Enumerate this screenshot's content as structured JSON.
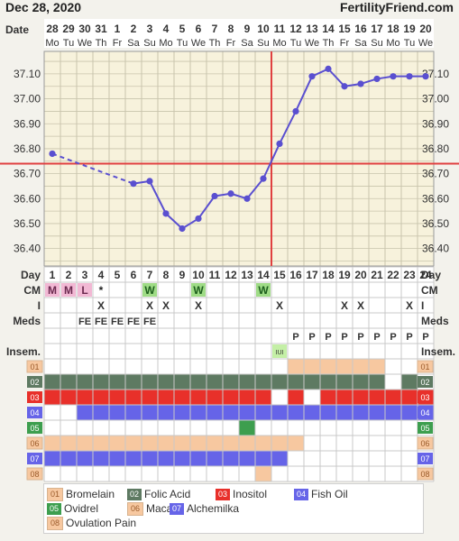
{
  "header": {
    "title": "Dec 28, 2020",
    "brand": "FertilityFriend.com"
  },
  "labels": {
    "date": "Date",
    "day": "Day",
    "cm": "CM",
    "i": "I",
    "meds": "Meds",
    "insem": "Insem."
  },
  "dates": [
    "28",
    "29",
    "30",
    "31",
    "1",
    "2",
    "3",
    "4",
    "5",
    "6",
    "7",
    "8",
    "9",
    "10",
    "11",
    "12",
    "13",
    "14",
    "15",
    "16",
    "17",
    "18",
    "19",
    "20"
  ],
  "weekdays": [
    "Mo",
    "Tu",
    "We",
    "Th",
    "Fr",
    "Sa",
    "Su",
    "Mo",
    "Tu",
    "We",
    "Th",
    "Fr",
    "Sa",
    "Su",
    "Mo",
    "Tu",
    "We",
    "Th",
    "Fr",
    "Sa",
    "Su",
    "Mo",
    "Tu",
    "We"
  ],
  "days": [
    "1",
    "2",
    "3",
    "4",
    "5",
    "6",
    "7",
    "8",
    "9",
    "10",
    "11",
    "12",
    "13",
    "14",
    "15",
    "16",
    "17",
    "18",
    "19",
    "20",
    "21",
    "22",
    "23",
    "24"
  ],
  "cm": [
    {
      "day": 1,
      "text": "M",
      "color": "#f2b8d4"
    },
    {
      "day": 2,
      "text": "M",
      "color": "#f2b8d4"
    },
    {
      "day": 3,
      "text": "L",
      "color": "#f2b8d4"
    },
    {
      "day": 4,
      "text": "*",
      "color": ""
    },
    {
      "day": 7,
      "text": "W",
      "color": "#9fdc86"
    },
    {
      "day": 10,
      "text": "W",
      "color": "#9fdc86"
    },
    {
      "day": 14,
      "text": "W",
      "color": "#9fdc86"
    }
  ],
  "intercourse": [
    4,
    7,
    8,
    10,
    15,
    19,
    20,
    23
  ],
  "intercourse_mark": "X",
  "meds_row_labels": [
    {
      "day": 3,
      "text": "FE"
    },
    {
      "day": 4,
      "text": "FE"
    },
    {
      "day": 5,
      "text": "FE"
    },
    {
      "day": 6,
      "text": "FE"
    },
    {
      "day": 7,
      "text": "FE"
    },
    {
      "day": 16,
      "text": "P"
    },
    {
      "day": 17,
      "text": "P"
    },
    {
      "day": 18,
      "text": "P"
    },
    {
      "day": 19,
      "text": "P"
    },
    {
      "day": 20,
      "text": "P"
    },
    {
      "day": 21,
      "text": "P"
    },
    {
      "day": 22,
      "text": "P"
    },
    {
      "day": 23,
      "text": "P"
    },
    {
      "day": 24,
      "text": "P"
    }
  ],
  "insemination": [
    {
      "day": 15,
      "text": "IUI",
      "color": "#c4efa6"
    }
  ],
  "supplements": [
    {
      "code": "01",
      "name": "Bromelain",
      "color": "#f7c8a0",
      "days": [
        16,
        17,
        18,
        19,
        20,
        21
      ]
    },
    {
      "code": "02",
      "name": "Folic Acid",
      "color": "#5e7a62",
      "days": [
        1,
        2,
        3,
        4,
        5,
        6,
        7,
        8,
        9,
        10,
        11,
        12,
        13,
        14,
        15,
        16,
        17,
        18,
        19,
        20,
        21,
        23
      ]
    },
    {
      "code": "03",
      "name": "Inositol",
      "color": "#e8302a",
      "days": [
        1,
        2,
        3,
        4,
        5,
        6,
        7,
        8,
        9,
        10,
        11,
        12,
        13,
        14,
        16,
        18,
        19,
        20,
        21,
        22,
        23,
        24
      ]
    },
    {
      "code": "04",
      "name": "Fish Oil",
      "color": "#6664e8",
      "days": [
        3,
        4,
        5,
        6,
        7,
        8,
        9,
        10,
        11,
        12,
        13,
        14,
        15,
        16,
        17,
        18,
        19,
        20,
        21,
        22,
        23,
        24
      ]
    },
    {
      "code": "05",
      "name": "Ovidrel",
      "color": "#3d9e4e",
      "days": [
        13
      ]
    },
    {
      "code": "06",
      "name": "Maca",
      "color": "#f7c8a0",
      "days": [
        1,
        2,
        3,
        4,
        5,
        6,
        7,
        8,
        9,
        10,
        11,
        12,
        13,
        14,
        15,
        16
      ]
    },
    {
      "code": "07",
      "name": "Alchemilka",
      "color": "#6664e8",
      "days": [
        1,
        2,
        3,
        4,
        5,
        6,
        7,
        8,
        9,
        10,
        11,
        12,
        13,
        14,
        15
      ]
    },
    {
      "code": "08",
      "name": "Ovulation Pain",
      "color": "#f7c8a0",
      "days": [
        14
      ]
    }
  ],
  "chart_data": {
    "type": "line",
    "x": [
      1,
      2,
      3,
      4,
      5,
      6,
      7,
      8,
      9,
      10,
      11,
      12,
      13,
      14,
      15,
      16,
      17,
      18,
      19,
      20,
      21,
      22,
      23,
      24
    ],
    "series": [
      {
        "values": [
          36.78,
          null,
          null,
          null,
          null,
          36.66,
          36.67,
          36.54,
          36.48,
          36.52,
          36.61,
          36.62,
          36.6,
          36.68,
          36.82,
          36.95,
          37.09,
          37.12,
          37.05,
          37.06,
          37.08,
          37.09,
          37.09,
          37.09
        ]
      }
    ],
    "y_ticks": [
      "36.40",
      "36.50",
      "36.60",
      "36.70",
      "36.80",
      "36.90",
      "37.00",
      "37.10"
    ],
    "ylim": [
      36.33,
      37.19
    ],
    "coverline": 36.74,
    "ovulation_day": 14,
    "line_color": "#5a4fd0",
    "coverline_color": "#e04040",
    "grid": true
  }
}
